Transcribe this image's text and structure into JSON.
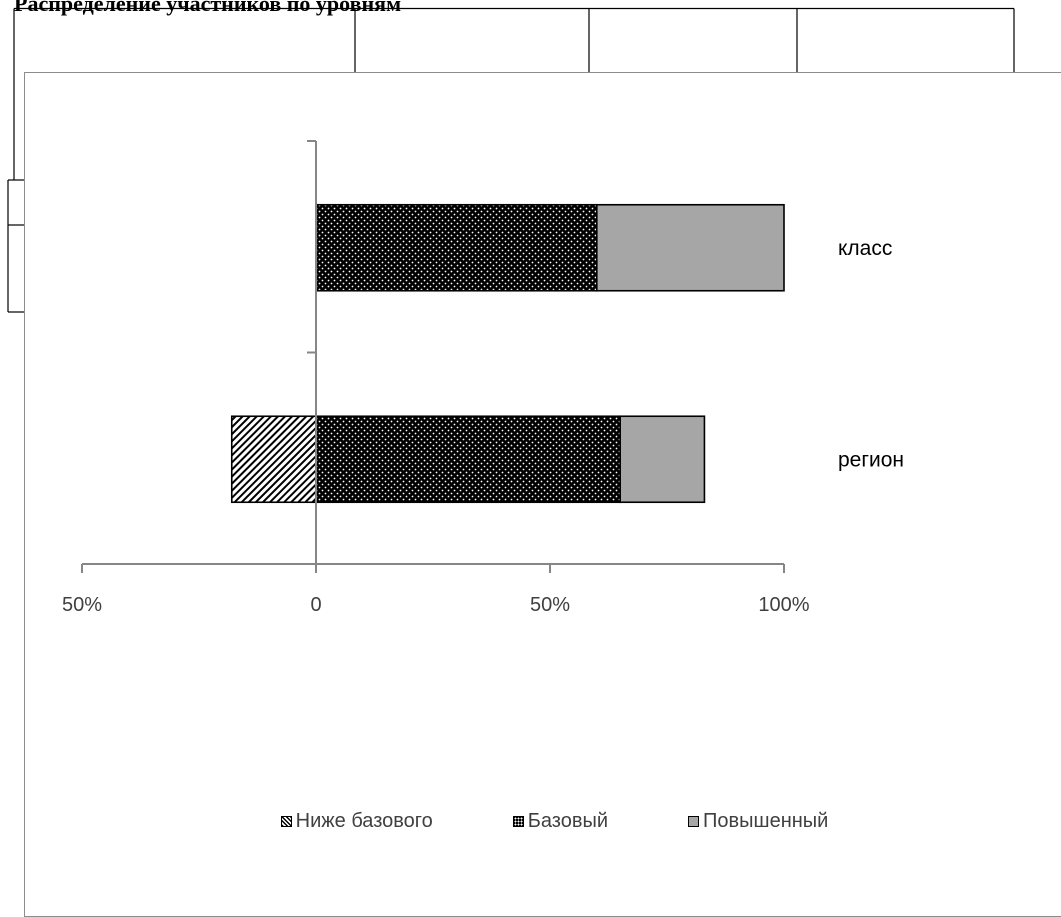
{
  "document": {
    "heading": "Распределение участников по уровням"
  },
  "chart_data": {
    "type": "bar",
    "orientation": "horizontal",
    "stacked": true,
    "categories": [
      "класс",
      "регион"
    ],
    "series": [
      {
        "name": "Ниже базового",
        "values": [
          0,
          -18
        ],
        "pattern": "diagonal-hatch",
        "color": "#ffffff"
      },
      {
        "name": "Базовый",
        "values": [
          60,
          65
        ],
        "pattern": "dotted",
        "color": "#000000"
      },
      {
        "name": "Повышенный",
        "values": [
          40,
          18
        ],
        "pattern": "solid",
        "color": "#a6a6a6"
      }
    ],
    "xlim": [
      -50,
      100
    ],
    "x_ticks": [
      {
        "value": -50,
        "label": "50%"
      },
      {
        "value": 0,
        "label": "0"
      },
      {
        "value": 50,
        "label": "50%"
      },
      {
        "value": 100,
        "label": "100%"
      }
    ],
    "title": "",
    "xlabel": "",
    "ylabel": "",
    "grid": false,
    "legend_position": "bottom",
    "axis_color": "#868686",
    "label_color": "#404040"
  }
}
